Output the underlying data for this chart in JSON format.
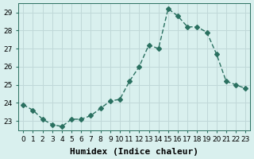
{
  "x": [
    0,
    1,
    2,
    3,
    4,
    5,
    6,
    7,
    8,
    9,
    10,
    11,
    12,
    13,
    14,
    15,
    16,
    17,
    18,
    19,
    20,
    21,
    22,
    23
  ],
  "y": [
    23.9,
    23.6,
    23.1,
    22.8,
    22.7,
    23.1,
    23.1,
    23.3,
    23.7,
    24.1,
    24.2,
    25.2,
    26.0,
    27.2,
    27.0,
    29.2,
    28.8,
    28.2,
    28.2,
    27.9,
    26.7,
    25.2,
    25.0,
    24.8
  ],
  "xlabel": "Humidex (Indice chaleur)",
  "ylabel": "",
  "xlim": [
    -0.5,
    23.5
  ],
  "ylim": [
    22.5,
    29.5
  ],
  "yticks": [
    23,
    24,
    25,
    26,
    27,
    28,
    29
  ],
  "xticks": [
    0,
    1,
    2,
    3,
    4,
    5,
    6,
    7,
    8,
    9,
    10,
    11,
    12,
    13,
    14,
    15,
    16,
    17,
    18,
    19,
    20,
    21,
    22,
    23
  ],
  "line_color": "#2a7060",
  "marker": "D",
  "marker_size": 3,
  "bg_color": "#d9f0ee",
  "grid_color": "#c0d8d8",
  "axes_color": "#2a7060",
  "tick_label_fontsize": 6.5,
  "xlabel_fontsize": 8
}
